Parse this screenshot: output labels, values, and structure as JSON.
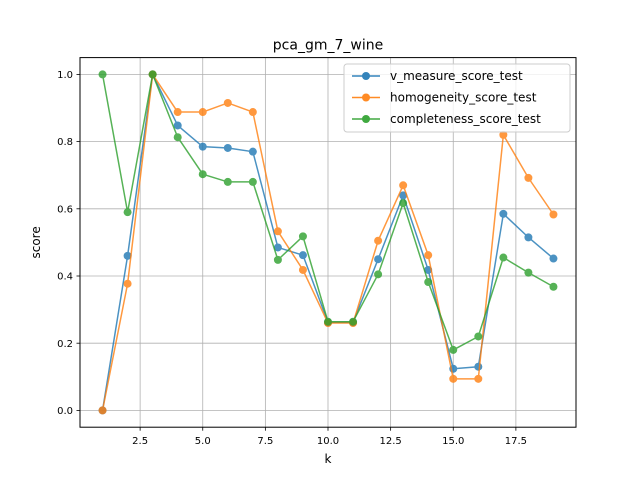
{
  "chart_data": {
    "type": "line",
    "title": "pca_gm_7_wine",
    "xlabel": "k",
    "ylabel": "score",
    "xlim": [
      0.1,
      19.9
    ],
    "ylim": [
      -0.05,
      1.05
    ],
    "xticks": [
      2.5,
      5.0,
      7.5,
      10.0,
      12.5,
      15.0,
      17.5
    ],
    "xtick_labels": [
      "2.5",
      "5.0",
      "7.5",
      "10.0",
      "12.5",
      "15.0",
      "17.5"
    ],
    "yticks": [
      0.0,
      0.2,
      0.4,
      0.6,
      0.8,
      1.0
    ],
    "ytick_labels": [
      "0.0",
      "0.2",
      "0.4",
      "0.6",
      "0.8",
      "1.0"
    ],
    "grid": true,
    "legend_position": "upper right",
    "x": [
      1,
      2,
      3,
      4,
      5,
      6,
      7,
      8,
      9,
      10,
      11,
      12,
      13,
      14,
      15,
      16,
      17,
      18,
      19
    ],
    "series": [
      {
        "name": "v_measure_score_test",
        "color": "#1f77b4",
        "values": [
          0.0,
          0.46,
          1.0,
          0.848,
          0.785,
          0.781,
          0.77,
          0.485,
          0.462,
          0.262,
          0.262,
          0.45,
          0.64,
          0.418,
          0.124,
          0.13,
          0.585,
          0.515,
          0.452
        ]
      },
      {
        "name": "homogeneity_score_test",
        "color": "#ff7f0e",
        "values": [
          0.0,
          0.377,
          1.0,
          0.888,
          0.888,
          0.915,
          0.888,
          0.533,
          0.418,
          0.26,
          0.26,
          0.505,
          0.67,
          0.462,
          0.094,
          0.094,
          0.82,
          0.692,
          0.583
        ]
      },
      {
        "name": "completeness_score_test",
        "color": "#2ca02c",
        "values": [
          1.0,
          0.59,
          1.0,
          0.813,
          0.703,
          0.68,
          0.68,
          0.448,
          0.518,
          0.264,
          0.264,
          0.405,
          0.617,
          0.382,
          0.18,
          0.22,
          0.455,
          0.41,
          0.368
        ]
      }
    ]
  }
}
